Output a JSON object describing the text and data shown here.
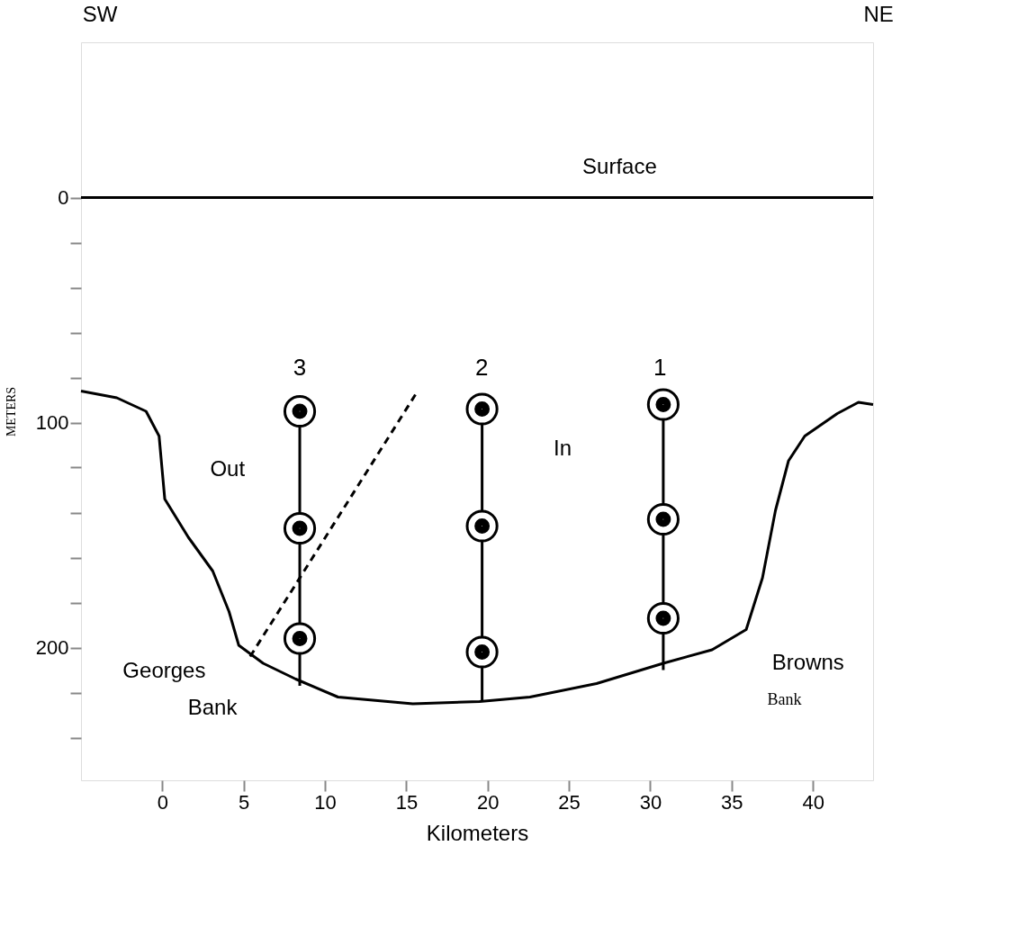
{
  "chart_data": {
    "type": "line",
    "xlabel": "Kilometers",
    "ylabel": "METERS",
    "xlim": [
      -5,
      43.7
    ],
    "ylim": [
      259,
      -69
    ],
    "xticks": [
      0,
      5,
      10,
      15,
      20,
      25,
      30,
      35,
      40
    ],
    "yticks": [
      0,
      {
        "value": 20,
        "label": null
      },
      {
        "value": 40,
        "label": null
      },
      {
        "value": 60,
        "label": null
      },
      {
        "value": 80,
        "label": null
      },
      100,
      {
        "value": 120,
        "label": null
      },
      {
        "value": 140,
        "label": null
      },
      {
        "value": 160,
        "label": null
      },
      {
        "value": 180,
        "label": null
      },
      200,
      {
        "value": 220,
        "label": null
      },
      {
        "value": 240,
        "label": null
      }
    ],
    "grid": false,
    "series": [
      {
        "color": "#000000",
        "x": [
          -5,
          -2.8,
          -1,
          -0.2,
          0.15,
          1.6,
          3.1,
          4.1,
          4.7,
          6.2,
          8.2,
          10.8,
          15.4,
          19.5,
          22.6,
          26.7,
          30.8,
          33.8,
          35.9,
          36.9,
          37.7,
          38.5,
          39.5,
          41.5,
          42.8,
          43.7
        ],
        "values": [
          86,
          89,
          95,
          106,
          134,
          151,
          166,
          184,
          199,
          207,
          214,
          222,
          225,
          224,
          222,
          216,
          207,
          201,
          192,
          169,
          139,
          117,
          106,
          96,
          91,
          92
        ]
      },
      {
        "name": "Surface",
        "color": "#000000",
        "x": [
          -5,
          43.7
        ],
        "values": [
          0,
          0
        ]
      },
      {
        "color": "#000000",
        "x": [
          8.45,
          8.45
        ],
        "values": [
          95,
          217
        ]
      },
      {
        "color": "#000000",
        "x": [
          19.66,
          19.66
        ],
        "values": [
          94,
          224
        ]
      },
      {
        "color": "#000000",
        "x": [
          30.8,
          30.8
        ],
        "values": [
          92,
          210
        ]
      },
      {
        "color": "#000000",
        "line_style": "dashed",
        "x": [
          5.4,
          15.7
        ],
        "values": [
          204,
          86
        ]
      },
      {
        "type": "scatter",
        "color": "#000000",
        "marker": "circle",
        "x": [
          8.45,
          8.45,
          8.45,
          19.66,
          19.66,
          19.66,
          30.8,
          30.8,
          30.8
        ],
        "values": [
          95,
          147,
          196,
          94,
          146,
          202,
          92,
          143,
          187
        ]
      }
    ],
    "annotations": [
      "3",
      "2",
      "1",
      "Out",
      "In",
      "Georges",
      "Bank",
      "Browns",
      "Bank",
      "SW",
      "NE"
    ]
  }
}
